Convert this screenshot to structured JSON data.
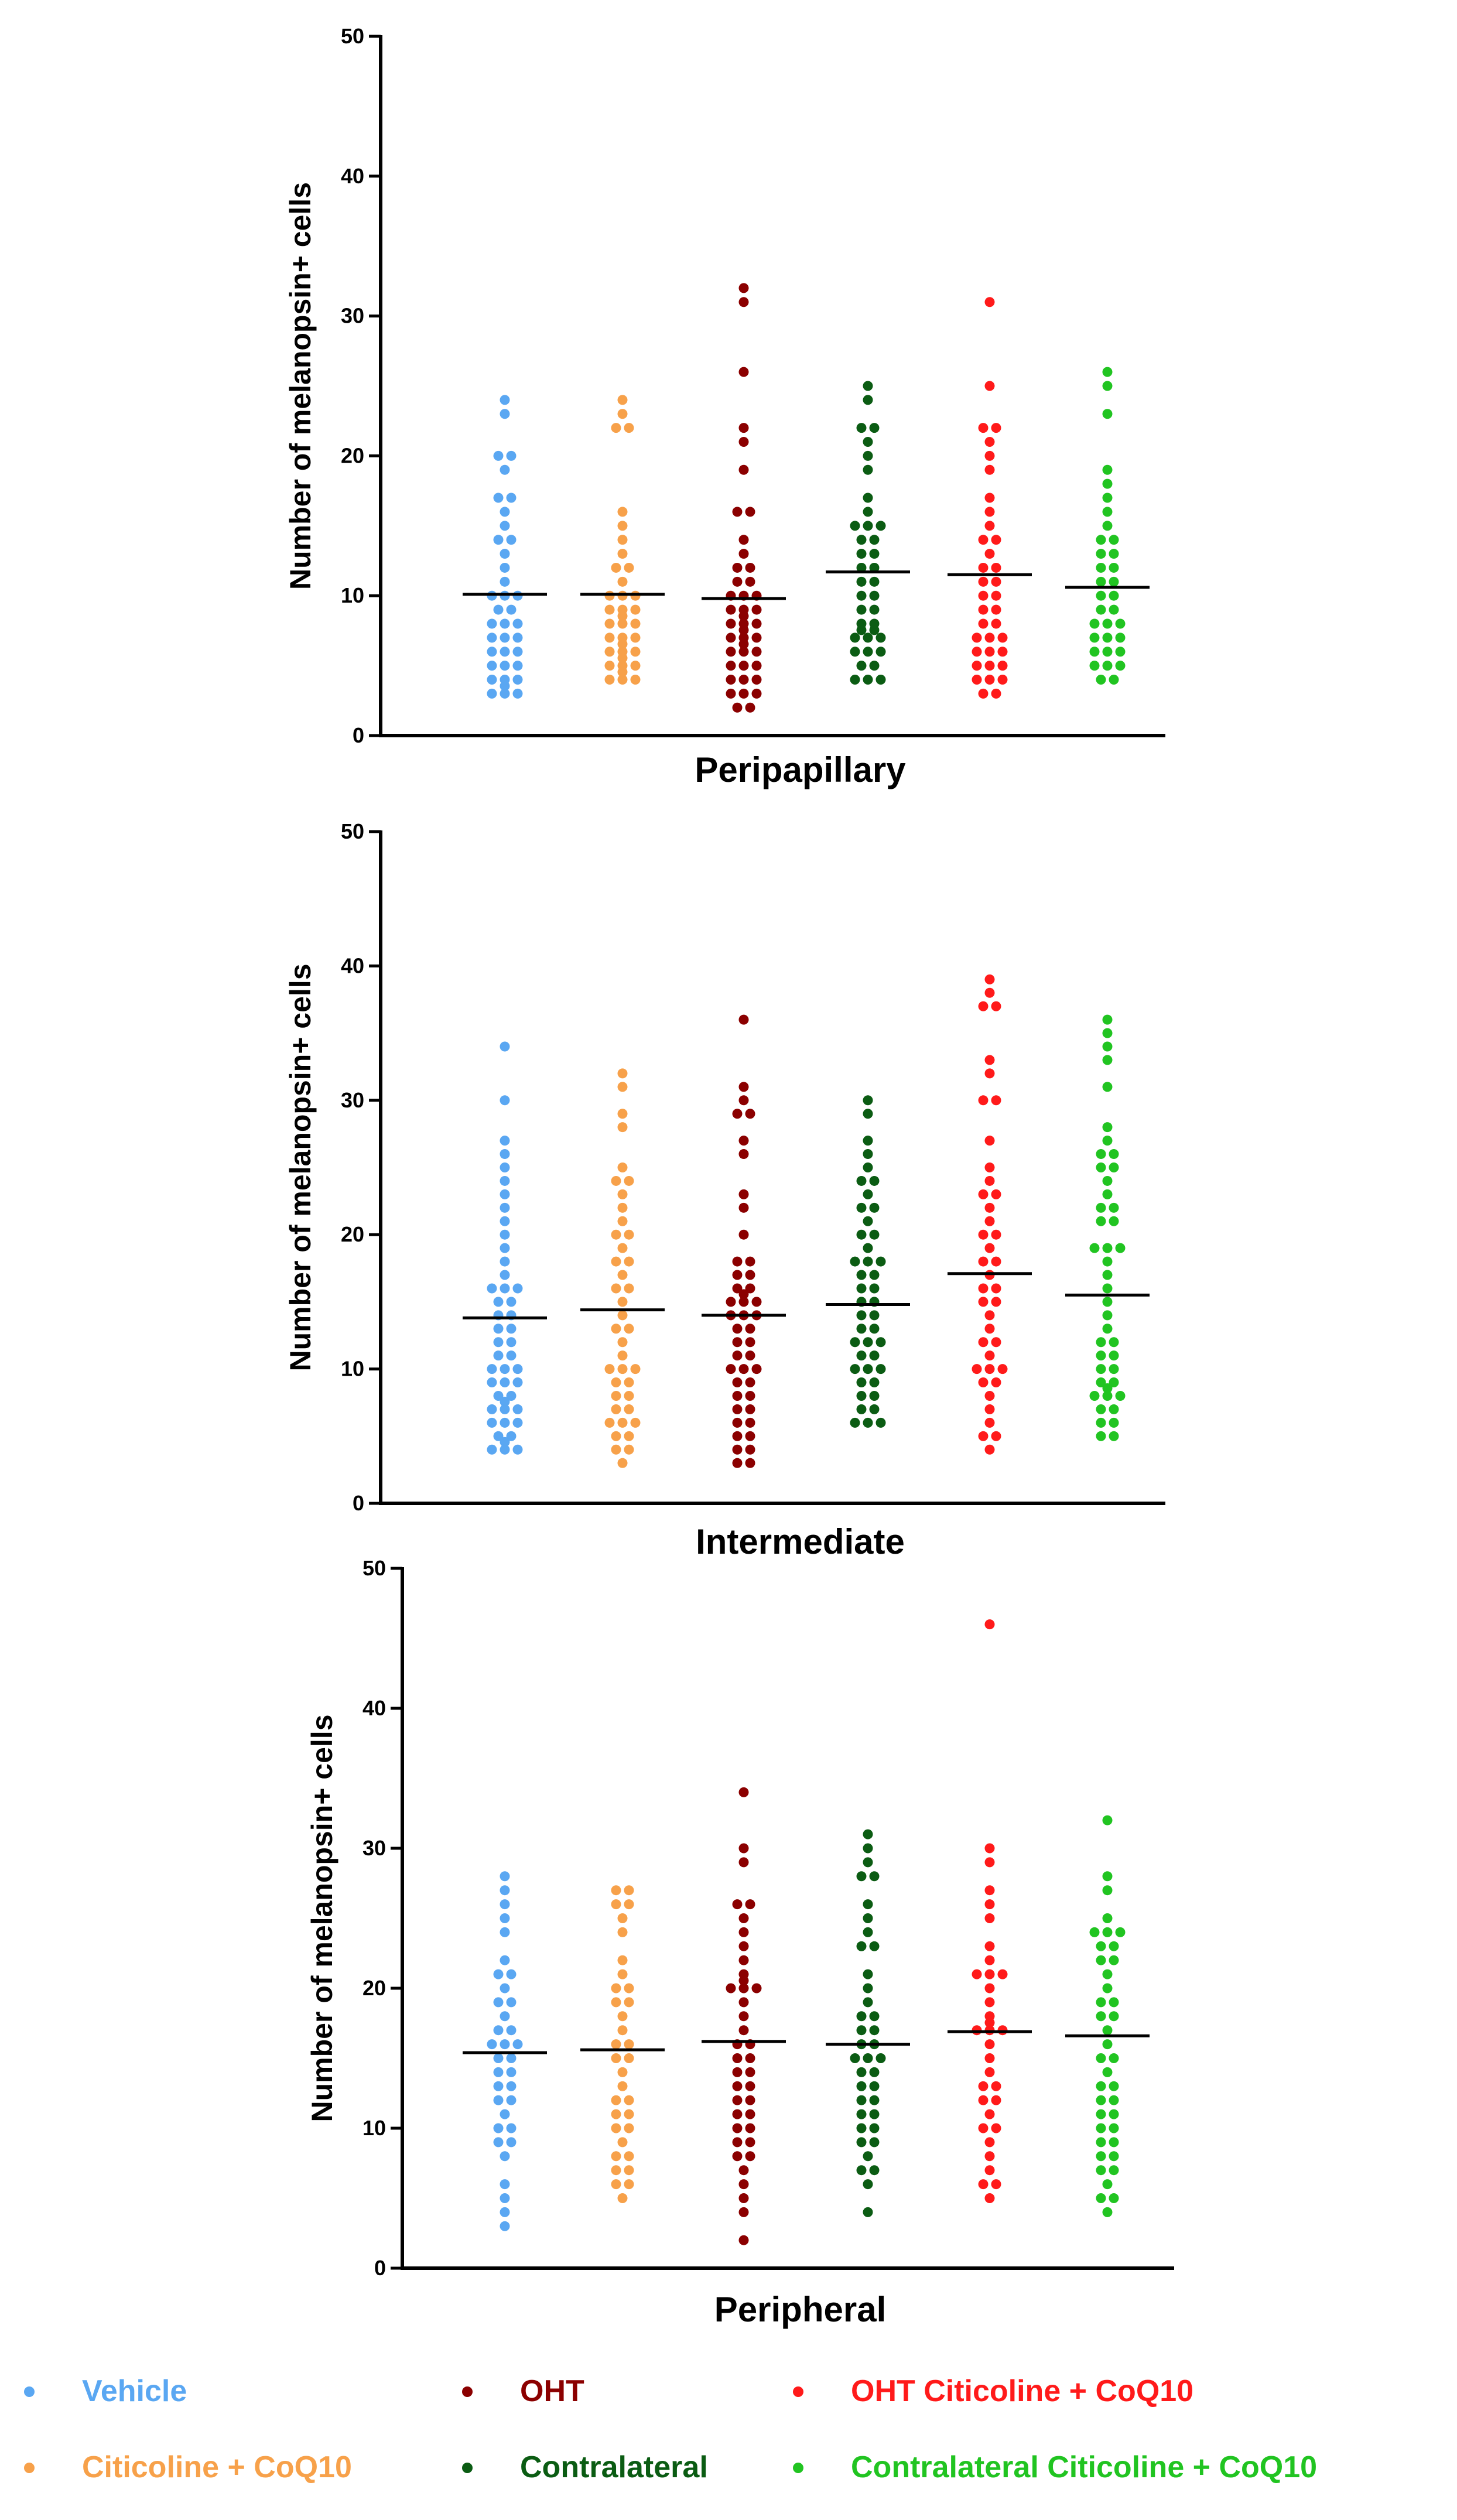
{
  "colors": {
    "Vehicle": "#5aa7f2",
    "Citicoline + CoQ10": "#f7a14a",
    "OHT": "#8b0000",
    "Contralateral": "#0b5c13",
    "OHT Citicoline + CoQ10": "#ff1a1a",
    "Contralateral Citicoline + CoQ10": "#21c421"
  },
  "legend": {
    "items": [
      {
        "label": "Vehicle",
        "color": "#5aa7f2"
      },
      {
        "label": "OHT",
        "color": "#8b0000"
      },
      {
        "label": "OHT Citicoline + CoQ10",
        "color": "#ff1a1a"
      },
      {
        "label": "Citicoline + CoQ10",
        "color": "#f7a14a"
      },
      {
        "label": "Contralateral",
        "color": "#0b5c13"
      },
      {
        "label": "Contralateral Citicoline + CoQ10",
        "color": "#21c421"
      }
    ]
  },
  "chart_data": [
    {
      "type": "scatter",
      "title": "Peripapillary",
      "xlabel": "Peripapillary",
      "ylabel": "Number of melanopsin+ cells",
      "ylim": [
        0,
        50
      ],
      "yticks": [
        0,
        10,
        20,
        30,
        40,
        50
      ],
      "categories": [
        "Vehicle",
        "Citicoline + CoQ10",
        "OHT",
        "Contralateral",
        "OHT Citicoline + CoQ10",
        "Contralateral Citicoline + CoQ10"
      ],
      "series": [
        {
          "name": "Vehicle",
          "mean": 10.1,
          "values": [
            24,
            23,
            20,
            20,
            19,
            17,
            17,
            16,
            15,
            14,
            14,
            13,
            12,
            11,
            10,
            10,
            10,
            9,
            9,
            8,
            8,
            8,
            7,
            7,
            7,
            6,
            6,
            6,
            5,
            5,
            5,
            4,
            4,
            4,
            3,
            3,
            3,
            3
          ]
        },
        {
          "name": "Citicoline + CoQ10",
          "mean": 10.1,
          "values": [
            24,
            23,
            22,
            22,
            16,
            15,
            14,
            13,
            12,
            12,
            11,
            10,
            10,
            10,
            9,
            9,
            9,
            8,
            8,
            8,
            8,
            7,
            7,
            7,
            6,
            6,
            6,
            6,
            5,
            5,
            5,
            5,
            4,
            4,
            4,
            4
          ]
        },
        {
          "name": "OHT",
          "mean": 9.8,
          "values": [
            32,
            31,
            26,
            22,
            21,
            19,
            16,
            16,
            14,
            13,
            12,
            12,
            11,
            11,
            10,
            10,
            10,
            9,
            9,
            9,
            8,
            8,
            8,
            8,
            7,
            7,
            7,
            7,
            6,
            6,
            6,
            6,
            5,
            5,
            5,
            4,
            4,
            4,
            3,
            3,
            3,
            2,
            2
          ]
        },
        {
          "name": "Contralateral",
          "mean": 11.7,
          "values": [
            25,
            24,
            22,
            22,
            21,
            20,
            19,
            17,
            16,
            15,
            15,
            15,
            14,
            14,
            13,
            13,
            12,
            12,
            11,
            11,
            10,
            10,
            9,
            9,
            8,
            8,
            7,
            7,
            7,
            7,
            7,
            6,
            6,
            6,
            5,
            5,
            4,
            4,
            4
          ]
        },
        {
          "name": "OHT Citicoline + CoQ10",
          "mean": 11.5,
          "values": [
            31,
            25,
            22,
            22,
            21,
            20,
            19,
            17,
            16,
            15,
            14,
            14,
            13,
            12,
            12,
            11,
            11,
            10,
            10,
            9,
            9,
            8,
            8,
            7,
            7,
            7,
            6,
            6,
            6,
            5,
            5,
            5,
            4,
            4,
            4,
            3,
            3
          ]
        },
        {
          "name": "Contralateral Citicoline + CoQ10",
          "mean": 10.6,
          "values": [
            26,
            25,
            23,
            19,
            18,
            17,
            16,
            15,
            14,
            14,
            13,
            13,
            12,
            12,
            11,
            11,
            10,
            10,
            9,
            9,
            8,
            8,
            8,
            7,
            7,
            7,
            6,
            6,
            6,
            5,
            5,
            5,
            4,
            4
          ]
        }
      ]
    },
    {
      "type": "scatter",
      "title": "Intermediate",
      "xlabel": "Intermediate",
      "ylabel": "Number of melanopsin+ cells",
      "ylim": [
        0,
        50
      ],
      "yticks": [
        0,
        10,
        20,
        30,
        40,
        50
      ],
      "categories": [
        "Vehicle",
        "Citicoline + CoQ10",
        "OHT",
        "Contralateral",
        "OHT Citicoline + CoQ10",
        "Contralateral Citicoline + CoQ10"
      ],
      "series": [
        {
          "name": "Vehicle",
          "mean": 13.8,
          "values": [
            34,
            30,
            27,
            26,
            25,
            24,
            23,
            22,
            21,
            20,
            19,
            18,
            17,
            16,
            16,
            16,
            15,
            15,
            14,
            14,
            13,
            13,
            12,
            12,
            11,
            11,
            10,
            10,
            10,
            9,
            9,
            9,
            8,
            8,
            7,
            7,
            7,
            7,
            6,
            6,
            6,
            5,
            5,
            4,
            4,
            4,
            4
          ]
        },
        {
          "name": "Citicoline + CoQ10",
          "mean": 14.4,
          "values": [
            32,
            31,
            29,
            28,
            25,
            24,
            24,
            23,
            22,
            21,
            20,
            20,
            19,
            18,
            18,
            17,
            16,
            16,
            15,
            14,
            13,
            13,
            12,
            11,
            10,
            10,
            10,
            9,
            9,
            8,
            8,
            7,
            7,
            6,
            6,
            6,
            5,
            5,
            4,
            4,
            3
          ]
        },
        {
          "name": "OHT",
          "mean": 14.0,
          "values": [
            36,
            31,
            30,
            29,
            29,
            27,
            26,
            23,
            22,
            20,
            18,
            18,
            17,
            17,
            16,
            16,
            15,
            15,
            15,
            15,
            14,
            14,
            14,
            13,
            13,
            12,
            12,
            11,
            11,
            10,
            10,
            10,
            9,
            9,
            8,
            8,
            7,
            7,
            6,
            6,
            5,
            5,
            4,
            4,
            3,
            3
          ]
        },
        {
          "name": "Contralateral",
          "mean": 14.8,
          "values": [
            30,
            29,
            27,
            26,
            25,
            24,
            24,
            23,
            22,
            22,
            21,
            20,
            20,
            19,
            18,
            18,
            18,
            17,
            17,
            16,
            16,
            15,
            15,
            14,
            14,
            13,
            13,
            12,
            12,
            12,
            11,
            11,
            10,
            10,
            10,
            9,
            9,
            8,
            8,
            7,
            7,
            6,
            6,
            6
          ]
        },
        {
          "name": "OHT Citicoline + CoQ10",
          "mean": 17.1,
          "values": [
            39,
            38,
            37,
            37,
            33,
            32,
            30,
            30,
            27,
            25,
            24,
            23,
            23,
            22,
            21,
            20,
            20,
            19,
            18,
            18,
            17,
            16,
            16,
            15,
            15,
            14,
            13,
            12,
            12,
            11,
            10,
            10,
            10,
            9,
            9,
            8,
            7,
            6,
            5,
            5,
            4
          ]
        },
        {
          "name": "Contralateral Citicoline + CoQ10",
          "mean": 15.5,
          "values": [
            36,
            35,
            34,
            33,
            31,
            28,
            27,
            26,
            26,
            25,
            25,
            24,
            23,
            22,
            22,
            21,
            21,
            19,
            19,
            19,
            18,
            17,
            16,
            15,
            14,
            13,
            12,
            12,
            11,
            11,
            10,
            10,
            9,
            9,
            8,
            8,
            8,
            8,
            7,
            7,
            6,
            6,
            5,
            5
          ]
        }
      ]
    },
    {
      "type": "scatter",
      "title": "Peripheral",
      "xlabel": "Peripheral",
      "ylabel": "Number of melanopsin+ cells",
      "ylim": [
        0,
        50
      ],
      "yticks": [
        0,
        10,
        20,
        30,
        40,
        50
      ],
      "categories": [
        "Vehicle",
        "Citicoline + CoQ10",
        "OHT",
        "Contralateral",
        "OHT Citicoline + CoQ10",
        "Contralateral Citicoline + CoQ10"
      ],
      "series": [
        {
          "name": "Vehicle",
          "mean": 15.4,
          "values": [
            28,
            27,
            26,
            25,
            24,
            22,
            21,
            21,
            20,
            19,
            19,
            18,
            17,
            17,
            16,
            16,
            16,
            15,
            15,
            14,
            14,
            13,
            13,
            12,
            12,
            11,
            10,
            10,
            9,
            9,
            8,
            6,
            5,
            4,
            3
          ]
        },
        {
          "name": "Citicoline + CoQ10",
          "mean": 15.6,
          "values": [
            27,
            27,
            26,
            26,
            25,
            24,
            22,
            21,
            20,
            20,
            19,
            19,
            18,
            17,
            16,
            16,
            15,
            15,
            14,
            13,
            12,
            12,
            11,
            11,
            10,
            10,
            9,
            8,
            8,
            7,
            7,
            6,
            6,
            5
          ]
        },
        {
          "name": "OHT",
          "mean": 16.2,
          "values": [
            34,
            30,
            29,
            26,
            26,
            25,
            24,
            23,
            22,
            21,
            20,
            20,
            20,
            20,
            19,
            18,
            17,
            16,
            16,
            15,
            15,
            14,
            14,
            13,
            13,
            12,
            12,
            11,
            11,
            10,
            10,
            9,
            9,
            8,
            8,
            7,
            6,
            5,
            4,
            2
          ]
        },
        {
          "name": "Contralateral",
          "mean": 16.0,
          "values": [
            31,
            30,
            29,
            28,
            28,
            26,
            25,
            24,
            23,
            23,
            21,
            20,
            19,
            18,
            18,
            17,
            17,
            16,
            16,
            15,
            15,
            15,
            14,
            14,
            13,
            13,
            12,
            12,
            11,
            11,
            10,
            10,
            9,
            9,
            8,
            7,
            7,
            6,
            4
          ]
        },
        {
          "name": "OHT Citicoline + CoQ10",
          "mean": 16.9,
          "values": [
            46,
            30,
            29,
            27,
            26,
            25,
            23,
            22,
            21,
            21,
            21,
            20,
            19,
            18,
            17,
            17,
            17,
            17,
            16,
            15,
            14,
            13,
            13,
            12,
            12,
            11,
            10,
            10,
            9,
            8,
            7,
            6,
            6,
            5
          ]
        },
        {
          "name": "Contralateral Citicoline + CoQ10",
          "mean": 16.6,
          "values": [
            32,
            28,
            27,
            25,
            24,
            24,
            24,
            23,
            23,
            22,
            22,
            21,
            20,
            19,
            19,
            18,
            18,
            17,
            16,
            15,
            15,
            14,
            13,
            13,
            12,
            12,
            11,
            11,
            10,
            10,
            9,
            9,
            8,
            8,
            7,
            7,
            6,
            5,
            5,
            4
          ]
        }
      ]
    }
  ]
}
